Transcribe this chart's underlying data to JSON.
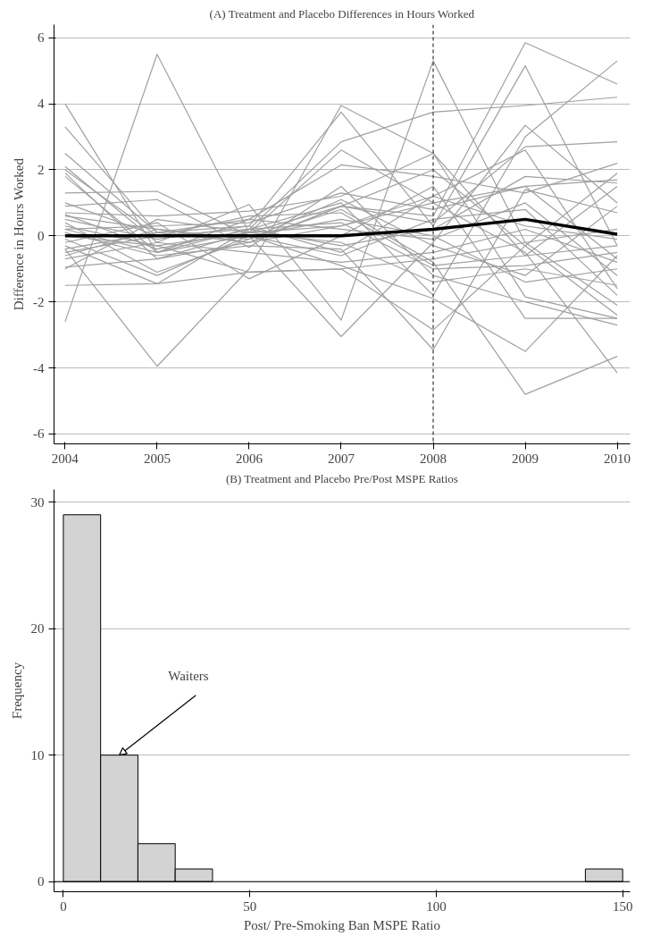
{
  "chart_data": [
    {
      "type": "line",
      "title": "(A) Treatment and Placebo Differences in Hours Worked",
      "ylabel": "Difference in Hours Worked",
      "x": [
        2004,
        2005,
        2006,
        2007,
        2008,
        2009,
        2010
      ],
      "xlim": [
        2003.88,
        2010.14
      ],
      "xticks": [
        2004,
        2005,
        2006,
        2007,
        2008,
        2009,
        2010
      ],
      "ylim": [
        -6.3,
        6.4
      ],
      "yticks": [
        -6,
        -4,
        -2,
        0,
        2,
        4,
        6
      ],
      "grid": "y",
      "marker": "none",
      "line_style": "solid",
      "ref_lines": [
        {
          "axis": "x",
          "value": 2008,
          "label": null,
          "color": "#333333",
          "line_style": "dashed"
        }
      ],
      "series": [
        {
          "color": "#a0a0a0",
          "values": [
            4.0,
            -0.5,
            0.0,
            -0.9,
            -1.9,
            -3.5,
            -0.6
          ]
        },
        {
          "color": "#a0a0a0",
          "values": [
            3.3,
            0.1,
            -0.2,
            0.9,
            0.6,
            5.85,
            4.6
          ]
        },
        {
          "color": "#a0a0a0",
          "values": [
            -2.6,
            5.5,
            0.1,
            0.3,
            1.0,
            1.5,
            -0.7
          ]
        },
        {
          "color": "#a0a0a0",
          "values": [
            -0.4,
            -3.95,
            -1.0,
            3.95,
            2.5,
            -1.85,
            -2.5
          ]
        },
        {
          "color": "#a0a0a0",
          "values": [
            2.5,
            0.1,
            0.3,
            3.75,
            0.3,
            5.15,
            -0.3
          ]
        },
        {
          "color": "#a0a0a0",
          "values": [
            2.1,
            -0.2,
            0.95,
            -2.55,
            5.3,
            -0.2,
            -2.1
          ]
        },
        {
          "color": "#a0a0a0",
          "values": [
            2.0,
            0.0,
            0.2,
            2.85,
            3.75,
            3.95,
            4.2
          ]
        },
        {
          "color": "#a0a0a0",
          "values": [
            1.9,
            -0.7,
            0.1,
            2.6,
            1.0,
            -0.5,
            -4.15
          ]
        },
        {
          "color": "#a0a0a0",
          "values": [
            1.8,
            -0.5,
            0.5,
            2.15,
            1.8,
            1.3,
            2.2
          ]
        },
        {
          "color": "#a0a0a0",
          "values": [
            1.3,
            1.35,
            0.0,
            -3.05,
            -0.2,
            3.35,
            1.0
          ]
        },
        {
          "color": "#a0a0a0",
          "values": [
            0.9,
            1.1,
            -0.35,
            1.5,
            -1.2,
            -2.0,
            -2.7
          ]
        },
        {
          "color": "#a0a0a0",
          "values": [
            0.7,
            0.6,
            0.75,
            1.2,
            2.5,
            -0.6,
            -0.3
          ]
        },
        {
          "color": "#a0a0a0",
          "values": [
            0.65,
            -0.4,
            0.2,
            1.0,
            -1.8,
            3.0,
            5.3
          ]
        },
        {
          "color": "#a0a0a0",
          "values": [
            0.6,
            0.2,
            -0.2,
            0.9,
            0.4,
            2.7,
            2.85
          ]
        },
        {
          "color": "#a0a0a0",
          "values": [
            0.4,
            -1.1,
            -0.1,
            0.8,
            -0.8,
            -4.8,
            -3.65
          ]
        },
        {
          "color": "#a0a0a0",
          "values": [
            0.3,
            -0.3,
            -1.1,
            -1.0,
            -2.85,
            -0.3,
            -2.4
          ]
        },
        {
          "color": "#a0a0a0",
          "values": [
            0.2,
            0.3,
            0.4,
            1.3,
            0.8,
            1.5,
            1.7
          ]
        },
        {
          "color": "#a0a0a0",
          "values": [
            0.1,
            -0.6,
            -0.3,
            -0.4,
            -3.45,
            1.4,
            0.7
          ]
        },
        {
          "color": "#a0a0a0",
          "values": [
            -0.1,
            -1.2,
            0.0,
            0.5,
            0.0,
            -1.4,
            -1.0
          ]
        },
        {
          "color": "#a0a0a0",
          "values": [
            -0.2,
            0.4,
            -1.3,
            0.0,
            1.5,
            -2.5,
            -2.5
          ]
        },
        {
          "color": "#a0a0a0",
          "values": [
            -0.3,
            -1.45,
            0.2,
            -0.3,
            0.2,
            1.8,
            1.6
          ]
        },
        {
          "color": "#a0a0a0",
          "values": [
            -0.5,
            0.0,
            0.6,
            0.7,
            -0.9,
            -0.6,
            1.5
          ]
        },
        {
          "color": "#a0a0a0",
          "values": [
            -0.7,
            -0.2,
            -0.5,
            -0.8,
            -0.5,
            0.2,
            -0.8
          ]
        },
        {
          "color": "#a0a0a0",
          "values": [
            -0.95,
            -0.7,
            -0.2,
            0.3,
            1.2,
            2.6,
            -1.6
          ]
        },
        {
          "color": "#a0a0a0",
          "values": [
            -1.0,
            0.5,
            0.1,
            -0.2,
            -1.4,
            -1.0,
            -1.5
          ]
        },
        {
          "color": "#a0a0a0",
          "values": [
            -1.5,
            -1.45,
            -1.1,
            -1.0,
            -0.7,
            -0.2,
            0.2
          ]
        },
        {
          "color": "#a0a0a0",
          "values": [
            0.5,
            -0.1,
            0.3,
            -0.5,
            1.2,
            0.3,
            -0.1
          ]
        },
        {
          "color": "#a0a0a0",
          "values": [
            -0.6,
            0.2,
            -0.1,
            1.1,
            -0.3,
            -1.2,
            0.9
          ]
        },
        {
          "color": "#a0a0a0",
          "values": [
            1.0,
            0.0,
            0.0,
            -0.6,
            0.5,
            0.8,
            -1.8
          ]
        },
        {
          "color": "#a0a0a0",
          "values": [
            0.2,
            -0.5,
            0.2,
            0.4,
            -1.0,
            -0.9,
            -0.5
          ]
        },
        {
          "color": "#a0a0a0",
          "values": [
            -0.4,
            0.1,
            0.5,
            0.2,
            -0.1,
            1.0,
            -1.2
          ]
        },
        {
          "color": "#a0a0a0",
          "values": [
            0.0,
            -0.3,
            0.1,
            0.9,
            2.0,
            -0.3,
            1.9
          ]
        },
        {
          "color": "#000000",
          "values": [
            0.0,
            0.0,
            0.0,
            0.0,
            0.2,
            0.5,
            0.05
          ]
        }
      ]
    },
    {
      "type": "histogram",
      "title": "(B) Treatment and Placebo Pre/Post MSPE Ratios",
      "xlabel": "Post/ Pre-Smoking Ban MSPE Ratio",
      "ylabel": "Frequency",
      "bins": [
        0,
        10,
        20,
        30,
        40,
        50,
        60,
        70,
        80,
        90,
        100,
        110,
        120,
        130,
        140,
        150
      ],
      "values": [
        29,
        10,
        3,
        1,
        0,
        0,
        0,
        0,
        0,
        0,
        0,
        0,
        0,
        0,
        1
      ],
      "color": "#d3d3d3",
      "xlim": [
        -2.5,
        152
      ],
      "xticks": [
        0,
        50,
        100,
        150
      ],
      "ylim": [
        -0.8,
        31
      ],
      "yticks": [
        0,
        10,
        20,
        30
      ],
      "grid": "y",
      "annotations": [
        {
          "text": "Waiters",
          "x": 15,
          "y": 10
        }
      ]
    }
  ]
}
